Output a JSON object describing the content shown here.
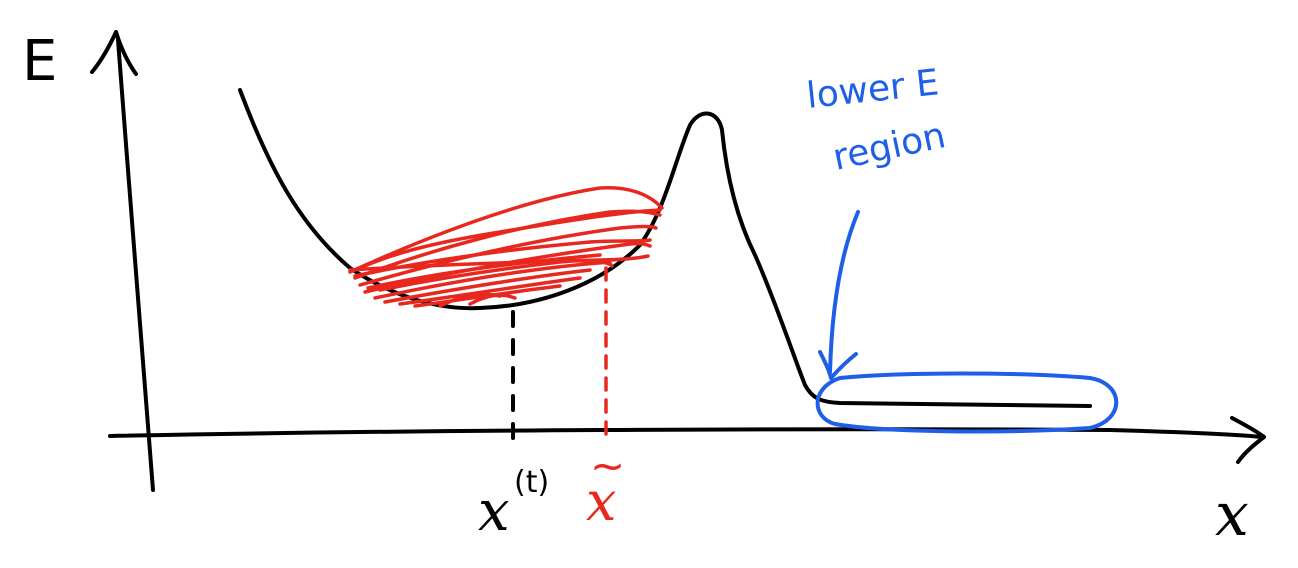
{
  "colors": {
    "ink": "#000000",
    "red": "#e8281f",
    "blue": "#1f5fe8"
  },
  "labels": {
    "y_axis": "E",
    "x_axis": "x",
    "current_point": "x",
    "current_point_superscript": "(t)",
    "proposal_point": "x",
    "proposal_point_accent": "~",
    "annotation_line1": "lower E",
    "annotation_line2": "region"
  }
}
